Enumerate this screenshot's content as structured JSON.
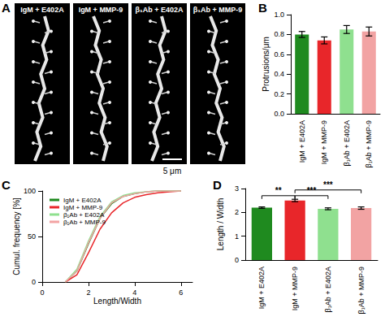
{
  "panel_labels": [
    "A",
    "B",
    "C",
    "D"
  ],
  "images": {
    "labels": [
      "IgM + E402A",
      "IgM + MMP-9",
      "β₁Ab + E402A",
      "β₁Ab + MMP-9"
    ],
    "scale_bar": "5 μm"
  },
  "chart_data": [
    {
      "type": "bar",
      "categories": [
        "IgM + E402A",
        "IgM + MMP-9",
        "β₁Ab + E402A",
        "β₁Ab + MMP-9"
      ],
      "values": [
        0.8,
        0.74,
        0.85,
        0.83
      ],
      "errors": [
        0.03,
        0.035,
        0.04,
        0.045
      ],
      "colors": [
        "#1f8a1f",
        "#e8262a",
        "#8fe08f",
        "#f2a3a3"
      ],
      "ylabel": "Protrusions/μm",
      "ylim": [
        0,
        1
      ],
      "yticks": [
        {
          "value": 0,
          "label": "0.0"
        },
        0.2,
        0.4,
        0.6,
        0.8,
        {
          "value": 1,
          "label": "1.0"
        }
      ],
      "grid": false
    },
    {
      "type": "line",
      "x": [
        1,
        1.5,
        2,
        2.5,
        3,
        3.5,
        4,
        4.5,
        5,
        5.5,
        6
      ],
      "series": [
        {
          "name": "IgM + E402A",
          "color": "#1f8a1f",
          "values": [
            0,
            12,
            42,
            70,
            86,
            94,
            97,
            99,
            100,
            100,
            100
          ]
        },
        {
          "name": "IgM + MMP-9",
          "color": "#e8262a",
          "values": [
            0,
            8,
            32,
            58,
            76,
            87,
            93,
            96,
            98,
            99,
            100
          ]
        },
        {
          "name": "β₁Ab + E402A",
          "color": "#8fe08f",
          "values": [
            0,
            14,
            45,
            72,
            88,
            95,
            98,
            99,
            100,
            100,
            100
          ]
        },
        {
          "name": "β₁Ab + MMP-9",
          "color": "#f2a3a3",
          "values": [
            0,
            12,
            43,
            70,
            87,
            94,
            97,
            99,
            100,
            100,
            100
          ]
        }
      ],
      "xlabel": "Length/Width",
      "ylabel": "Cumul. frequency [%]",
      "xlim": [
        0,
        6.5
      ],
      "xticks": [
        0,
        2,
        4,
        6
      ],
      "ylim": [
        0,
        100
      ],
      "yticks": [
        0,
        50,
        100
      ],
      "legend": "upper left",
      "grid": false
    },
    {
      "type": "bar",
      "categories": [
        "IgM + E402A",
        "IgM + MMP-9",
        "β₁Ab + E402A",
        "β₁Ab + MMP-9"
      ],
      "values": [
        2.2,
        2.5,
        2.15,
        2.18
      ],
      "errors": [
        0.03,
        0.05,
        0.04,
        0.05
      ],
      "colors": [
        "#1f8a1f",
        "#e8262a",
        "#8fe08f",
        "#f2a3a3"
      ],
      "ylabel": "Length / Width",
      "ylim": [
        0,
        3
      ],
      "yticks": [
        0,
        1,
        2,
        3
      ],
      "significance": [
        {
          "from": 0,
          "to": 1,
          "label": "**"
        },
        {
          "from": 1,
          "to": 2,
          "label": "***"
        },
        {
          "from": 1,
          "to": 3,
          "label": "***"
        }
      ],
      "grid": false
    }
  ]
}
